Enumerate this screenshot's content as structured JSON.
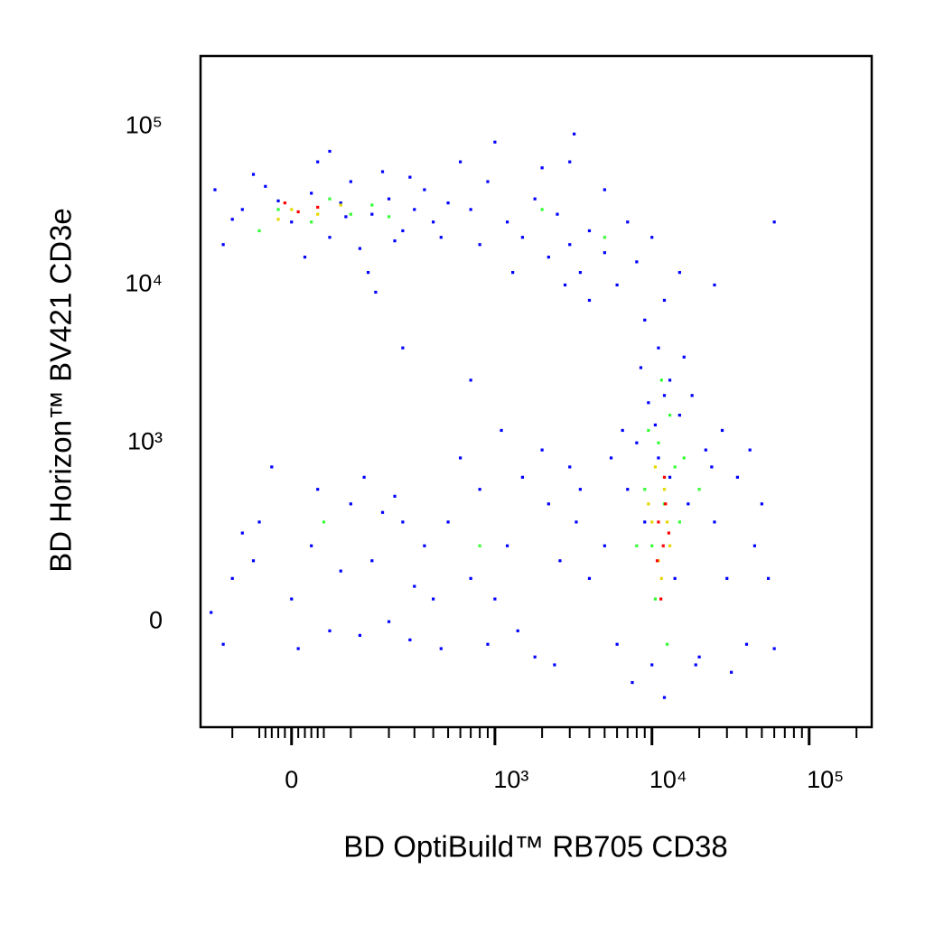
{
  "chart_data": {
    "type": "scatter",
    "x_label": "BD OptiBuild™ RB705 CD38",
    "y_label": "BD Horizon™ BV421 CD3e",
    "xscale": "biexponential",
    "yscale": "biexponential",
    "xlim": [
      -180,
      250000
    ],
    "ylim": [
      -330,
      280000
    ],
    "xticks": [
      0,
      {
        "value": 1000,
        "label": "10³"
      },
      {
        "value": 10000,
        "label": "10⁴"
      },
      {
        "value": 100000,
        "label": "10⁵"
      }
    ],
    "xminorticks": [
      -100,
      -50,
      -40,
      -30,
      -20,
      -10,
      10,
      20,
      30,
      40,
      50,
      100,
      200,
      300,
      400,
      500,
      600,
      700,
      800,
      900,
      2000,
      3000,
      4000,
      5000,
      6000,
      7000,
      8000,
      9000,
      20000,
      30000,
      40000,
      50000,
      60000,
      70000,
      80000,
      90000,
      200000
    ],
    "yticks": [
      0,
      {
        "value": 1000,
        "label": "10³"
      },
      {
        "value": 10000,
        "label": "10⁴"
      },
      {
        "value": 100000,
        "label": "10⁵"
      }
    ],
    "series": [
      {
        "color": "#0000ff",
        "x": [
          -80,
          -40,
          0,
          30,
          60,
          100,
          150,
          200,
          250,
          -120,
          -60,
          20,
          80,
          120,
          180,
          300,
          350,
          400,
          -100,
          40,
          140,
          220,
          280,
          -20,
          90,
          500,
          450,
          -140,
          60,
          160,
          700,
          900,
          1200,
          1500,
          1800,
          2200,
          2500,
          3000,
          3500,
          4000,
          5000,
          6000,
          7000,
          8000,
          10000,
          12000,
          600,
          1000,
          2000,
          3000,
          5000,
          4000,
          2800,
          1300,
          800,
          3200,
          15000,
          9000,
          25000,
          60000,
          5000,
          6000,
          7000,
          8000,
          9000,
          10000,
          11000,
          12000,
          13000,
          14000,
          15000,
          17000,
          20000,
          22000,
          25000,
          30000,
          35000,
          40000,
          45000,
          50000,
          4000,
          3500,
          6500,
          8500,
          11000,
          13000,
          16000,
          18000,
          9500,
          28000,
          32000,
          7500,
          12000,
          19000,
          24000,
          42000,
          55000,
          60000,
          5500,
          10500,
          -100,
          -50,
          0,
          30,
          60,
          100,
          150,
          200,
          250,
          300,
          -120,
          -80,
          40,
          120,
          180,
          350,
          -150,
          80,
          10,
          220,
          130,
          -30,
          400,
          280,
          -60,
          500,
          700,
          900,
          1200,
          1500,
          1800,
          2200,
          2600,
          3000,
          600,
          800,
          1000,
          1400,
          2000,
          2400,
          450,
          3300,
          1100,
          700,
          250
        ],
        "y": [
          30000,
          42000,
          25000,
          38000,
          20000,
          45000,
          28000,
          35000,
          22000,
          18000,
          50000,
          15000,
          33000,
          17000,
          52000,
          30000,
          40000,
          25000,
          26000,
          60000,
          12000,
          19000,
          48000,
          34000,
          27000,
          33000,
          20000,
          40000,
          70000,
          9000,
          30000,
          45000,
          25000,
          20000,
          35000,
          15000,
          28000,
          18000,
          12000,
          22000,
          16000,
          10000,
          25000,
          14000,
          20000,
          8000,
          60000,
          80000,
          55000,
          60000,
          40000,
          8000,
          10000,
          12000,
          18000,
          90000,
          12000,
          6000,
          10000,
          25000,
          200,
          -50,
          500,
          1000,
          300,
          -100,
          800,
          2000,
          600,
          100,
          1500,
          400,
          -80,
          900,
          300,
          100,
          600,
          -50,
          200,
          400,
          100,
          500,
          1200,
          3000,
          4000,
          2500,
          3500,
          2000,
          1800,
          1200,
          -120,
          -150,
          -200,
          -100,
          700,
          900,
          100,
          -60,
          800,
          1300,
          100,
          300,
          50,
          200,
          -20,
          400,
          150,
          0,
          300,
          80,
          -50,
          250,
          500,
          -30,
          350,
          200,
          20,
          120,
          -60,
          450,
          600,
          700,
          50,
          -40,
          150,
          300,
          100,
          -50,
          200,
          600,
          -80,
          400,
          150,
          700,
          800,
          500,
          50,
          -20,
          900,
          -100,
          -60,
          300,
          1200,
          2500,
          4000
        ]
      },
      {
        "color": "#33ff33",
        "x": [
          -20,
          30,
          60,
          100,
          -50,
          150,
          200,
          9000,
          10000,
          11000,
          12000,
          13000,
          14000,
          11500,
          8000,
          15000,
          10500,
          16000,
          9500,
          12500,
          2000,
          5000,
          800,
          50,
          20000
        ],
        "y": [
          30000,
          25000,
          35000,
          28000,
          22000,
          32000,
          27000,
          500,
          200,
          1000,
          400,
          1500,
          700,
          2500,
          200,
          300,
          50,
          800,
          1200,
          -50,
          30000,
          20000,
          200,
          300,
          500
        ]
      },
      {
        "color": "#e6d800",
        "x": [
          0,
          40,
          -20,
          80,
          10000,
          11000,
          12000,
          10500,
          11500,
          12500,
          9500,
          13000
        ],
        "y": [
          30000,
          28000,
          26000,
          32000,
          300,
          150,
          500,
          700,
          100,
          300,
          400,
          200
        ]
      },
      {
        "color": "#ff0000",
        "x": [
          10,
          40,
          -10,
          11000,
          11800,
          12200,
          10800,
          12000,
          11400,
          12800
        ],
        "y": [
          29000,
          31000,
          33000,
          300,
          200,
          400,
          150,
          600,
          50,
          250
        ]
      }
    ]
  }
}
